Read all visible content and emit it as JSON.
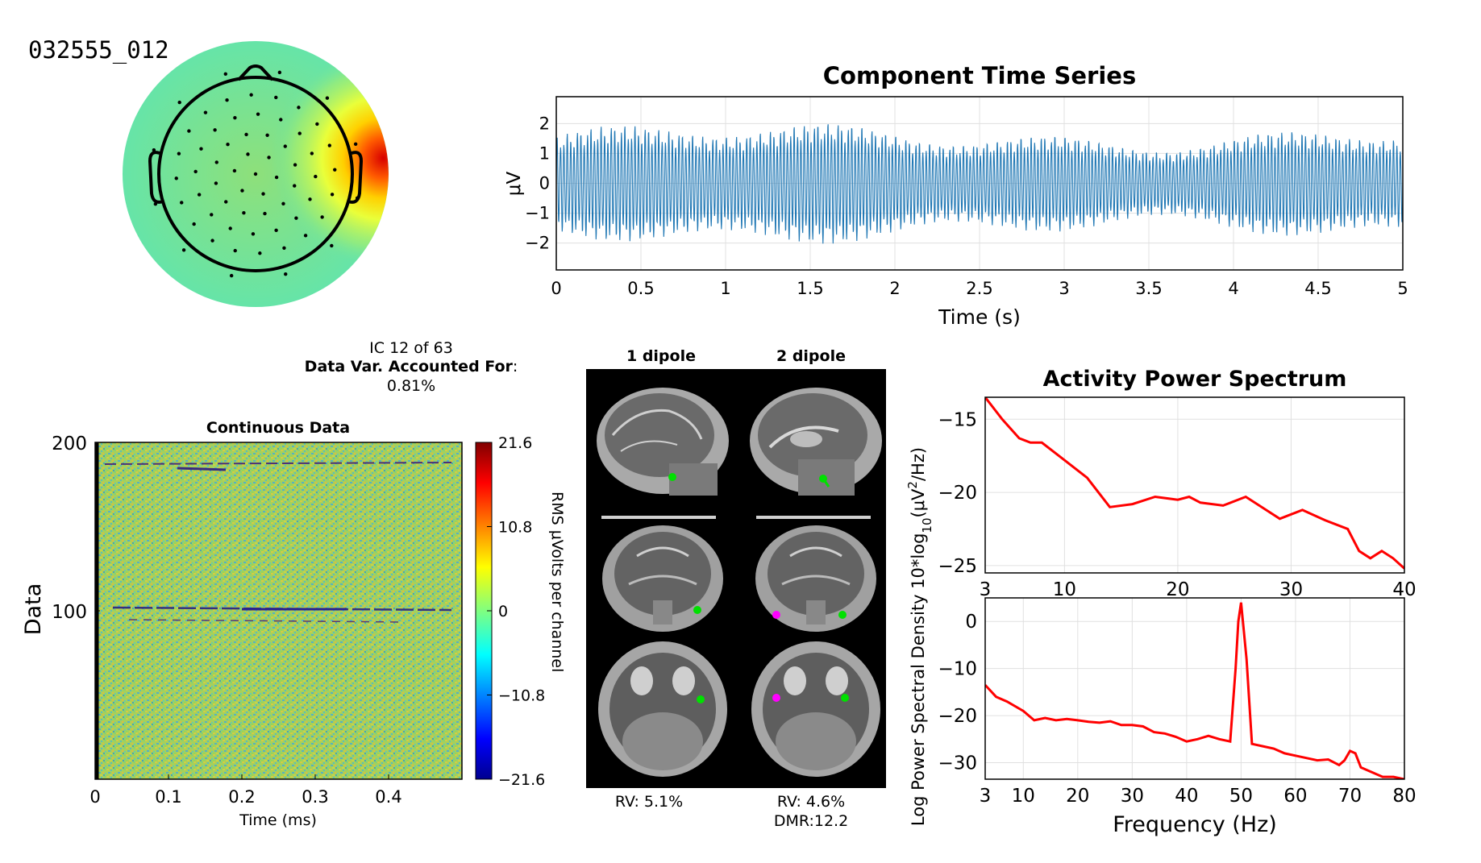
{
  "figure": {
    "dataset_label": "032555_012",
    "ic_line": "IC 12 of 63",
    "var_label": "Data Var. Accounted For",
    "var_colon": ":",
    "var_value": "0.81%",
    "colors": {
      "trace_blue": "#1f77b4",
      "spectrum_red": "#ff0000",
      "dipole_green": "#00e000",
      "dipole_magenta": "#ff00ff",
      "grid": "#e0e0e0"
    }
  },
  "topoplot": {
    "type": "topography",
    "colormap": "jet",
    "description_scale": "mostly neutral field, strong positive lobe at right temporal edge"
  },
  "dipoles": {
    "col1_title": "1 dipole",
    "col2_title": "2 dipole",
    "col1_rv": "RV: 5.1%",
    "col2_rv": "RV: 4.6%",
    "col2_dmr": "DMR:12.2",
    "views": [
      "sagittal",
      "coronal",
      "axial"
    ]
  },
  "chart_data": [
    {
      "type": "line",
      "title": "Component Time Series",
      "xlabel": "Time (s)",
      "ylabel": "μV",
      "xlim": [
        0,
        5
      ],
      "ylim": [
        -2.9,
        2.9
      ],
      "xticks": [
        "0",
        "0.5",
        "1",
        "1.5",
        "2",
        "2.5",
        "3",
        "3.5",
        "4",
        "4.5",
        "5"
      ],
      "yticks": [
        "2",
        "1",
        "0",
        "−1",
        "−2"
      ],
      "grid": true,
      "series": [
        {
          "values_description": "dense ~50 Hz oscillation, amplitude about ±2 μV",
          "amplitude": 2.1,
          "frequency_hz": 50
        }
      ]
    },
    {
      "type": "heatmap",
      "title": "Continuous Data",
      "xlabel": "Time (ms)",
      "ylabel": "Data",
      "xlim": [
        0,
        0.5
      ],
      "ylim": [
        0,
        200
      ],
      "xticks": [
        "0",
        "0.1",
        "0.2",
        "0.3",
        "0.4"
      ],
      "yticks": [
        "200",
        "100"
      ],
      "colorbar": {
        "label": "RMS μVolts per channel",
        "ticks": [
          "21.6",
          "10.8",
          "0",
          "−10.8",
          "−21.6"
        ],
        "limits": [
          -21.6,
          21.6
        ]
      }
    },
    {
      "type": "line",
      "title": "Activity Power Spectrum",
      "xlabel": "",
      "ylabel": "Log Power Spectral Density 10*log",
      "ylabel_sub": "10",
      "ylabel_tail": "(μV",
      "ylabel_sup": "2",
      "ylabel_end": "/Hz)",
      "xlim": [
        3,
        40
      ],
      "ylim": [
        -25.5,
        -13.5
      ],
      "xticks": [
        "3",
        "10",
        "20",
        "30",
        "40"
      ],
      "yticks": [
        "−15",
        "−20",
        "−25"
      ],
      "grid": true,
      "x": [
        3,
        4.5,
        6,
        7,
        8,
        10,
        12,
        13,
        14,
        16,
        18,
        19,
        20,
        21,
        22,
        24,
        26,
        27,
        29,
        30,
        31,
        33,
        35,
        36,
        37,
        38,
        39,
        40
      ],
      "series": [
        {
          "values": [
            -13.5,
            -15,
            -16.3,
            -16.6,
            -16.6,
            -17.8,
            -19,
            -20,
            -21,
            -20.8,
            -20.3,
            -20.4,
            -20.5,
            -20.3,
            -20.7,
            -20.9,
            -20.3,
            -20.8,
            -21.8,
            -21.5,
            -21.2,
            -21.9,
            -22.5,
            -24.0,
            -24.5,
            -24.0,
            -24.5,
            -25.2
          ]
        }
      ]
    },
    {
      "type": "line",
      "title": "",
      "xlabel": "Frequency (Hz)",
      "ylabel": "",
      "xlim": [
        3,
        80
      ],
      "ylim": [
        -33.5,
        5
      ],
      "xticks": [
        "3",
        "10",
        "20",
        "30",
        "40",
        "50",
        "60",
        "70",
        "80"
      ],
      "yticks": [
        "0",
        "−10",
        "−20",
        "−30"
      ],
      "grid": true,
      "x": [
        3,
        5,
        7,
        10,
        12,
        14,
        16,
        18,
        20,
        22,
        24,
        26,
        28,
        30,
        32,
        34,
        36,
        38,
        40,
        42,
        44,
        46,
        48,
        49,
        49.5,
        50,
        50.5,
        51,
        52,
        54,
        56,
        58,
        60,
        62,
        64,
        66,
        68,
        69,
        70,
        71,
        72,
        74,
        76,
        78,
        80
      ],
      "series": [
        {
          "values": [
            -13.5,
            -16,
            -17,
            -19,
            -21,
            -20.5,
            -21,
            -20.7,
            -21,
            -21.3,
            -21.5,
            -21.2,
            -22,
            -22,
            -22.3,
            -23.5,
            -23.8,
            -24.5,
            -25.5,
            -25,
            -24.3,
            -25,
            -25.5,
            -10,
            0,
            4,
            -2,
            -8,
            -26,
            -26.5,
            -27,
            -28,
            -28.5,
            -29,
            -29.5,
            -29.3,
            -30.5,
            -29.5,
            -27.5,
            -28,
            -31,
            -32,
            -33,
            -33,
            -33.5
          ]
        }
      ]
    }
  ]
}
